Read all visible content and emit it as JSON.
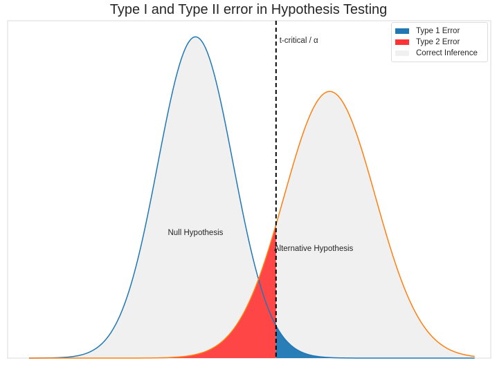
{
  "chart_data": {
    "type": "area",
    "title": "Type I and Type II error in Hypothesis Testing",
    "xlabel": "",
    "ylabel": "",
    "grid": false,
    "legend_position": "top-right",
    "xlim": [
      -1.5,
      7.5
    ],
    "ylim": [
      0,
      1.05
    ],
    "series": [
      {
        "name": "Null Hypothesis",
        "mean": 2.0,
        "sd": 0.7,
        "peak": 1.0,
        "color": "#1f77b4"
      },
      {
        "name": "Alternative Hypothesis",
        "mean": 4.5,
        "sd": 0.85,
        "peak": 0.83,
        "color": "#ff7f0e"
      }
    ],
    "critical_value": 3.5,
    "critical_label": "t-critical / α",
    "legend": [
      {
        "label": "Type 1 Error",
        "color": "#1f77b4"
      },
      {
        "label": "Type 2 Error",
        "color": "#ff3333"
      },
      {
        "label": "Correct Inference",
        "color": "#f0f0f0"
      }
    ],
    "annotations": [
      {
        "text": "Null Hypothesis",
        "x": 2.0,
        "y": 0.39
      },
      {
        "text": "Alternative Hypothesis",
        "x": 4.2,
        "y": 0.34
      }
    ]
  }
}
